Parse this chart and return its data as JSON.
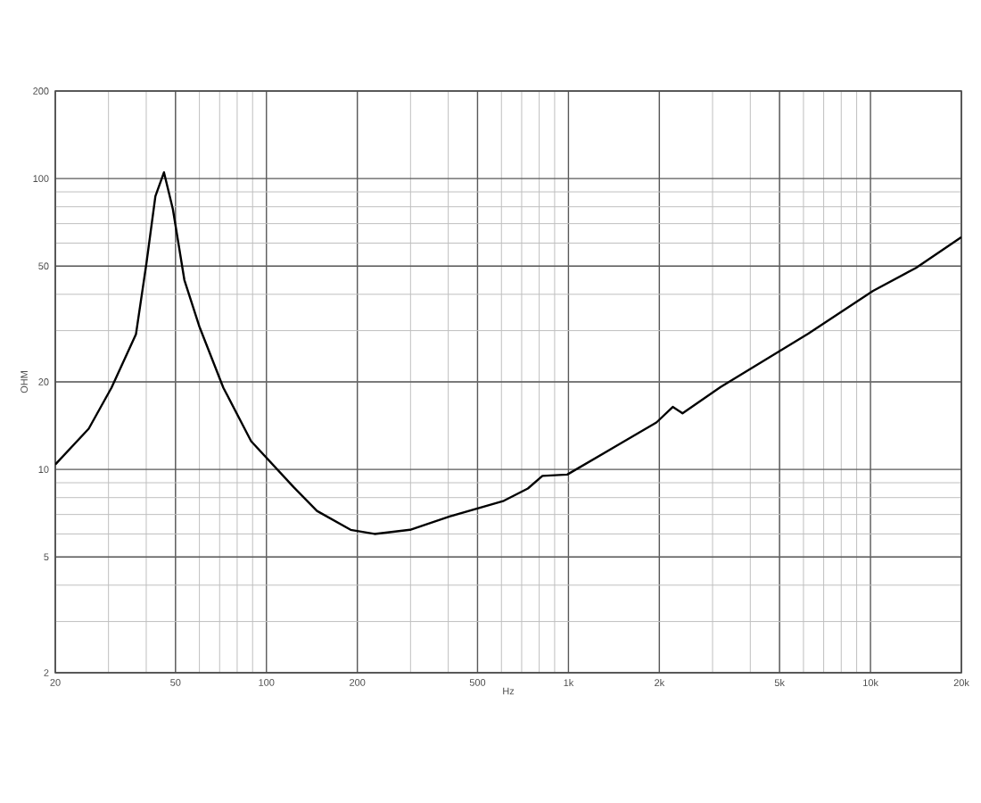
{
  "chart_data": {
    "type": "line",
    "xlabel": "Hz",
    "ylabel": "OHM",
    "x": [
      20,
      25.8,
      30.7,
      37,
      40.1,
      42.9,
      45.8,
      49,
      53.5,
      59.9,
      72,
      89,
      123,
      147,
      190,
      228,
      299,
      406,
      611,
      734,
      820,
      991,
      1492,
      1956,
      2215,
      2386,
      3190,
      6220,
      10200,
      14150,
      20000
    ],
    "series": [
      {
        "color": "#000000",
        "values": [
          10.4,
          13.8,
          19.1,
          29.2,
          51.5,
          87,
          105,
          78.6,
          44.8,
          31.1,
          19.1,
          12.5,
          8.7,
          7.2,
          6.2,
          6.0,
          6.2,
          6.9,
          7.8,
          8.6,
          9.5,
          9.6,
          12.3,
          14.5,
          16.4,
          15.6,
          19.2,
          29.3,
          41.1,
          49.3,
          62.9
        ]
      }
    ],
    "log": "xy",
    "grid": true,
    "line_style": "solid",
    "marker": "none",
    "xlim": [
      20,
      20000
    ],
    "ylim": [
      2,
      200
    ],
    "xticks": [
      20,
      50,
      100,
      200,
      500,
      {
        "value": 1000,
        "label": "1k"
      },
      {
        "value": 2000,
        "label": "2k"
      },
      {
        "value": 5000,
        "label": "5k"
      },
      {
        "value": 10000,
        "label": "10k"
      },
      {
        "value": 20000,
        "label": "20k"
      }
    ],
    "yticks": [
      2,
      5,
      10,
      20,
      50,
      100,
      200
    ]
  }
}
